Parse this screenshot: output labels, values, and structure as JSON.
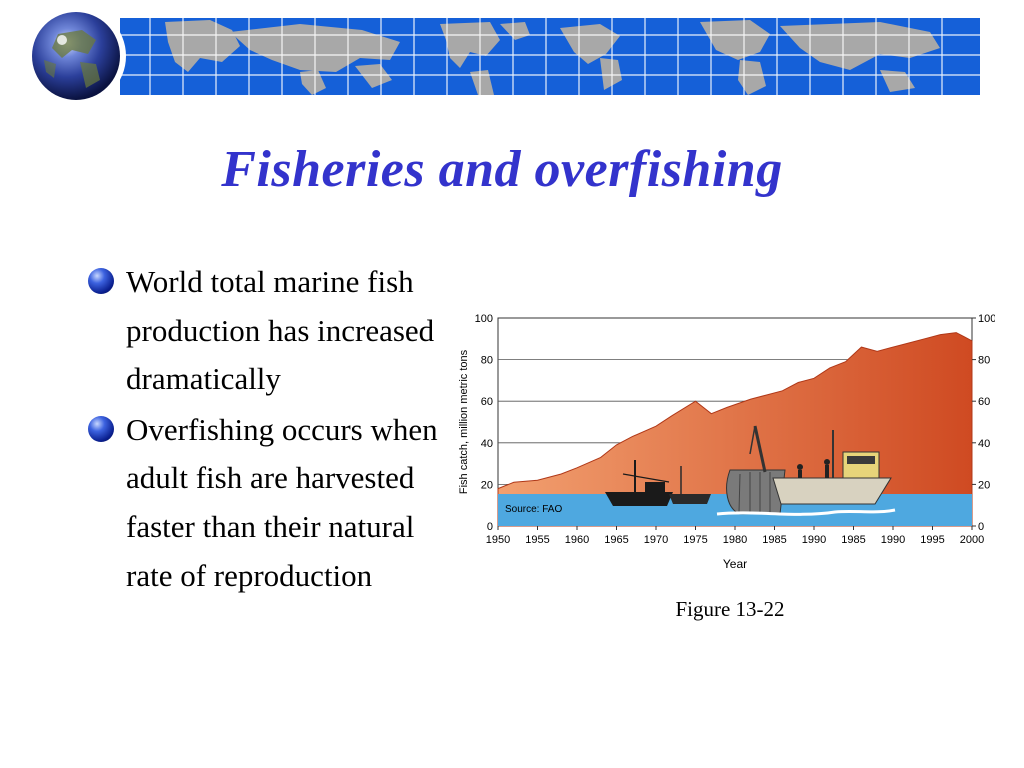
{
  "slide": {
    "title": "Fisheries and overfishing",
    "bullets": [
      "World total marine fish production has increased dramatically",
      "Overfishing occurs when adult fish are harvested faster than their natural rate of reproduction"
    ],
    "caption": "Figure 13-22"
  },
  "colors": {
    "title": "#3333cc",
    "banner_sea": "#1560d8",
    "banner_land": "#a8a8a8",
    "catch_area_top": "#cf4a22",
    "catch_area_bottom": "#f2a070",
    "water": "#4ea8e0"
  },
  "icons": {
    "globe": "globe-icon",
    "bullet": "bullet-sphere-icon",
    "boats": "fishing-boats-illustration"
  },
  "chart_data": {
    "type": "area",
    "xlabel": "Year",
    "ylabel": "Fish catch, million metric tons",
    "source_note": "Source: FAO",
    "ylim": [
      0,
      100
    ],
    "yticks": [
      0,
      20,
      40,
      60,
      80,
      100
    ],
    "xtick_labels": [
      "1950",
      "1955",
      "1960",
      "1965",
      "1970",
      "1975",
      "1980",
      "1985",
      "1990",
      "1985",
      "1990",
      "1995",
      "2000"
    ],
    "right_axis_ticks": [
      0,
      20,
      40,
      60,
      80,
      100
    ],
    "grid": true,
    "x": [
      1950,
      1952,
      1955,
      1958,
      1960,
      1963,
      1965,
      1967,
      1970,
      1972,
      1975,
      1977,
      1979,
      1982,
      1984,
      1986,
      1988,
      1990,
      1992,
      1994,
      1996,
      1998,
      2000,
      2002,
      2004,
      2006,
      2008,
      2009,
      2010
    ],
    "values": [
      18,
      21,
      22,
      25,
      28,
      33,
      39,
      43,
      48,
      53,
      60,
      54,
      57,
      61,
      63,
      65,
      69,
      71,
      76,
      79,
      86,
      84,
      86,
      88,
      90,
      92,
      93,
      91,
      89
    ],
    "x_axis_extent": [
      1950,
      2010
    ]
  }
}
